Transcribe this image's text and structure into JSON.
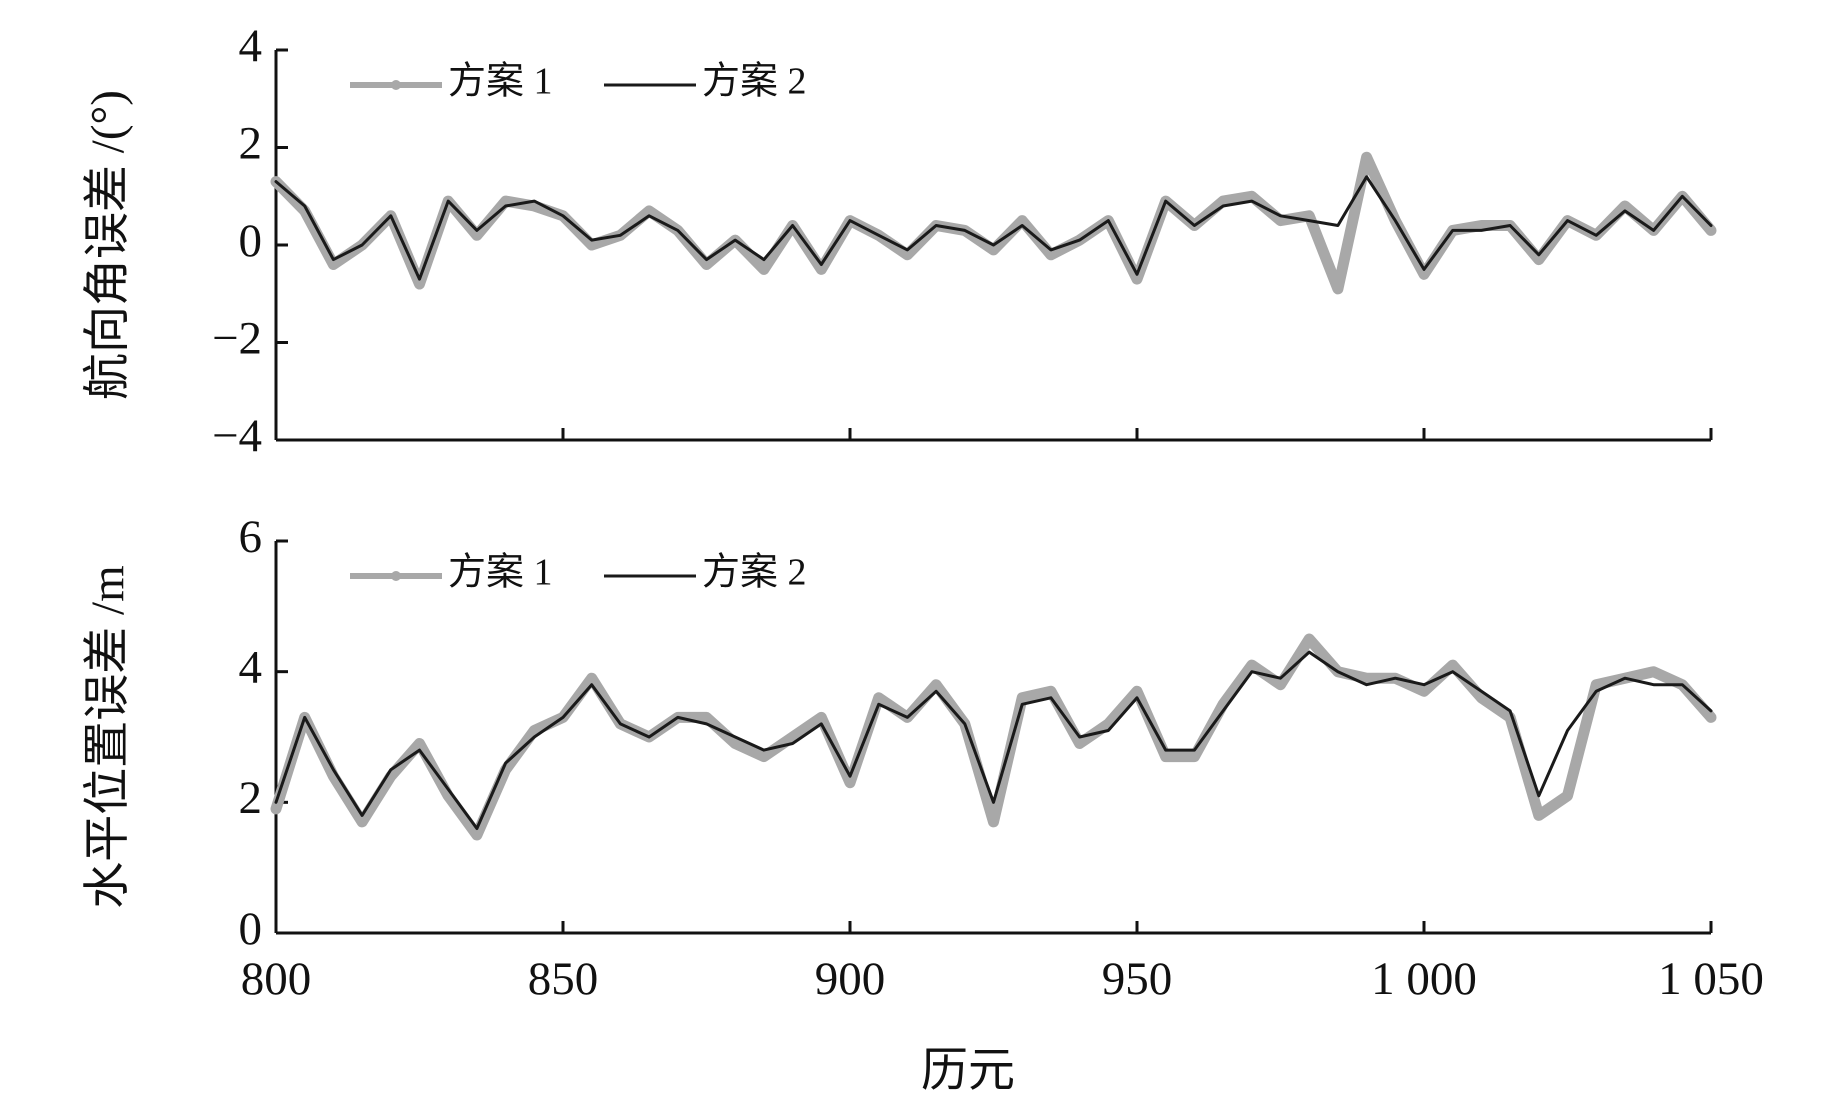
{
  "chart_data": [
    {
      "type": "line",
      "ylabel": "航向角误差 /(°)",
      "x": [
        800,
        805,
        810,
        815,
        820,
        825,
        830,
        835,
        840,
        845,
        850,
        855,
        860,
        865,
        870,
        875,
        880,
        885,
        890,
        895,
        900,
        905,
        910,
        915,
        920,
        925,
        930,
        935,
        940,
        945,
        950,
        955,
        960,
        965,
        970,
        975,
        980,
        985,
        990,
        995,
        1000,
        1005,
        1010,
        1015,
        1020,
        1025,
        1030,
        1035,
        1040,
        1045,
        1050
      ],
      "series": [
        {
          "name": "方案 1",
          "color": "#a8a8a8",
          "values": [
            1.3,
            0.7,
            -0.4,
            0.0,
            0.6,
            -0.8,
            0.9,
            0.2,
            0.9,
            0.8,
            0.6,
            0.0,
            0.2,
            0.7,
            0.3,
            -0.4,
            0.1,
            -0.5,
            0.4,
            -0.5,
            0.5,
            0.2,
            -0.2,
            0.4,
            0.3,
            -0.1,
            0.5,
            -0.2,
            0.1,
            0.5,
            -0.7,
            0.9,
            0.4,
            0.9,
            1.0,
            0.5,
            0.6,
            -0.9,
            1.8,
            0.5,
            -0.6,
            0.3,
            0.4,
            0.4,
            -0.3,
            0.5,
            0.2,
            0.8,
            0.3,
            1.0,
            0.3
          ]
        },
        {
          "name": "方案 2",
          "color": "#1a1a1a",
          "values": [
            1.3,
            0.8,
            -0.3,
            0.0,
            0.6,
            -0.7,
            0.9,
            0.3,
            0.8,
            0.9,
            0.6,
            0.1,
            0.2,
            0.6,
            0.3,
            -0.3,
            0.1,
            -0.3,
            0.4,
            -0.4,
            0.5,
            0.2,
            -0.1,
            0.4,
            0.3,
            0.0,
            0.4,
            -0.1,
            0.1,
            0.5,
            -0.6,
            0.9,
            0.4,
            0.8,
            0.9,
            0.6,
            0.5,
            0.4,
            1.4,
            0.5,
            -0.5,
            0.3,
            0.3,
            0.4,
            -0.2,
            0.5,
            0.2,
            0.7,
            0.3,
            1.0,
            0.4
          ]
        }
      ],
      "xlim": [
        800,
        1050
      ],
      "ylim": [
        -4,
        4
      ],
      "yticks": [
        {
          "value": -4,
          "label": "−4"
        },
        {
          "value": -2,
          "label": "−2"
        },
        0,
        2,
        4
      ],
      "legend": "upper left"
    },
    {
      "type": "line",
      "ylabel": "水平位置误差 /m",
      "xlabel": "历元",
      "x": [
        800,
        805,
        810,
        815,
        820,
        825,
        830,
        835,
        840,
        845,
        850,
        855,
        860,
        865,
        870,
        875,
        880,
        885,
        890,
        895,
        900,
        905,
        910,
        915,
        920,
        925,
        930,
        935,
        940,
        945,
        950,
        955,
        960,
        965,
        970,
        975,
        980,
        985,
        990,
        995,
        1000,
        1005,
        1010,
        1015,
        1020,
        1025,
        1030,
        1035,
        1040,
        1045,
        1050
      ],
      "series": [
        {
          "name": "方案 1",
          "color": "#a8a8a8",
          "values": [
            1.9,
            3.3,
            2.4,
            1.7,
            2.4,
            2.9,
            2.1,
            1.5,
            2.5,
            3.1,
            3.3,
            3.9,
            3.2,
            3.0,
            3.3,
            3.3,
            2.9,
            2.7,
            3.0,
            3.3,
            2.3,
            3.6,
            3.3,
            3.8,
            3.2,
            1.7,
            3.6,
            3.7,
            2.9,
            3.2,
            3.7,
            2.7,
            2.7,
            3.5,
            4.1,
            3.8,
            4.5,
            4.0,
            3.9,
            3.9,
            3.7,
            4.1,
            3.6,
            3.3,
            1.8,
            2.1,
            3.8,
            3.9,
            4.0,
            3.8,
            3.3
          ]
        },
        {
          "name": "方案 2",
          "color": "#1a1a1a",
          "values": [
            2.0,
            3.3,
            2.5,
            1.8,
            2.5,
            2.8,
            2.2,
            1.6,
            2.6,
            3.0,
            3.3,
            3.8,
            3.2,
            3.0,
            3.3,
            3.2,
            3.0,
            2.8,
            2.9,
            3.2,
            2.4,
            3.5,
            3.3,
            3.7,
            3.2,
            2.0,
            3.5,
            3.6,
            3.0,
            3.1,
            3.6,
            2.8,
            2.8,
            3.4,
            4.0,
            3.9,
            4.3,
            4.0,
            3.8,
            3.9,
            3.8,
            4.0,
            3.7,
            3.4,
            2.1,
            3.1,
            3.7,
            3.9,
            3.8,
            3.8,
            3.4
          ]
        }
      ],
      "xlim": [
        800,
        1050
      ],
      "ylim": [
        0,
        6
      ],
      "xticks": [
        800,
        850,
        900,
        950,
        {
          "value": 1000,
          "label": "1 000"
        },
        {
          "value": 1050,
          "label": "1 050"
        }
      ],
      "yticks": [
        0,
        2,
        4,
        6
      ],
      "legend": "upper left"
    }
  ]
}
